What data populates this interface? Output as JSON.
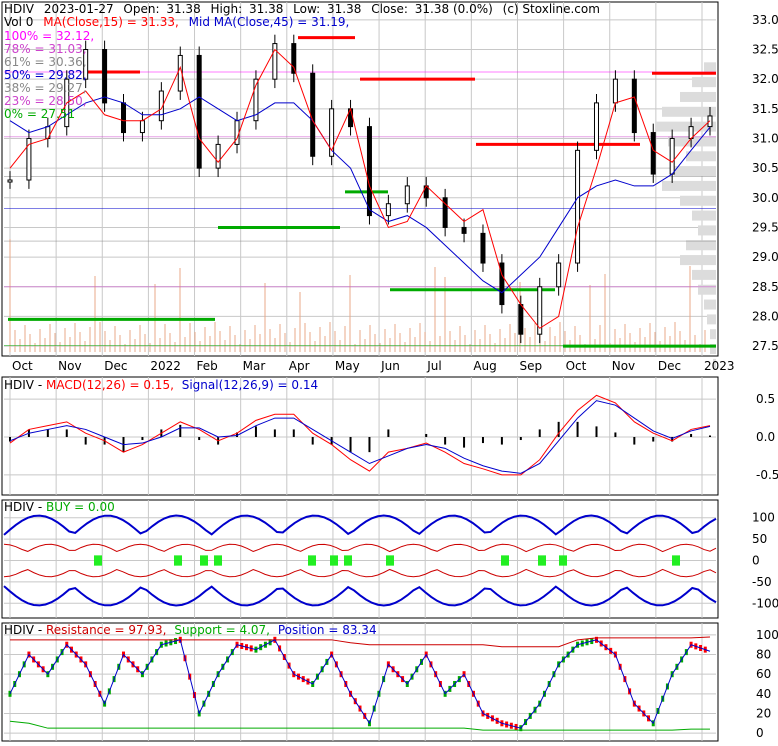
{
  "header": {
    "symbol": "HDIV",
    "date": "2023-01-27",
    "open_label": "Open:",
    "open": "31.38",
    "high_label": "High:",
    "high": "31.38",
    "low_label": "Low:",
    "low": "31.38",
    "close_label": "Close:",
    "close": "31.38 (0.0%)",
    "credit": "(c) Stoxline.com",
    "vol_label": "Vol 0",
    "ma15_label": "MA(Close,15) = 31.33,",
    "ma45_label": "Mid MA(Close,45) = 31.19,"
  },
  "fib_levels": [
    {
      "label": "100% = 32.12,",
      "color": "#ff00ff"
    },
    {
      "label": "78% = 31.03,",
      "color": "#cc44cc"
    },
    {
      "label": "61% = 30.36,",
      "color": "#888888"
    },
    {
      "label": "50% = 29.82,",
      "color": "#0000cc"
    },
    {
      "label": "38% = 29.27,",
      "color": "#888888"
    },
    {
      "label": "23% = 28.50,",
      "color": "#cc44cc"
    },
    {
      "label": "0% = 27.51",
      "color": "#00aa00"
    }
  ],
  "months": [
    "Oct",
    "Nov",
    "Dec",
    "2022",
    "Feb",
    "Mar",
    "Apr",
    "May",
    "Jun",
    "Jul",
    "Aug",
    "Sep",
    "Oct",
    "Nov",
    "Dec",
    "2023"
  ],
  "price_axis": [
    "33.0",
    "32.5",
    "32.0",
    "31.5",
    "31.0",
    "30.5",
    "30.0",
    "29.5",
    "29.0",
    "28.5",
    "28.0",
    "27.5"
  ],
  "macd_panel": {
    "title_sym": "HDIV",
    "title_sep": " - ",
    "macd_label": "MACD(12,26) = 0.15,",
    "signal_label": "Signal(12,26,9) = 0.14",
    "axis": [
      "0.5",
      "0.0",
      "-0.5"
    ]
  },
  "buy_panel": {
    "title_sym": "HDIV",
    "title_sep": " - ",
    "buy_label": "BUY = 0.00",
    "axis": [
      "100",
      "50",
      "0",
      "-50",
      "-100"
    ]
  },
  "stoch_panel": {
    "title_sym": "HDIV",
    "title_sep": " - ",
    "res_label": "Resistance = 97.93,",
    "sup_label": "Support = 4.07,",
    "pos_label": "Position = 83.34",
    "axis": [
      "100",
      "80",
      "60",
      "40",
      "20",
      "0"
    ]
  },
  "colors": {
    "up": "#00aa00",
    "down": "#ff0000",
    "ma15": "#ff0000",
    "ma45": "#0000cc",
    "volume": "#e8a98a",
    "grid": "#c8c8c8",
    "buy_bar": "#22ee22"
  },
  "chart_data": [
    {
      "type": "candlestick",
      "title": "HDIV 2023-01-27",
      "x_ticks": [
        "Oct",
        "Nov",
        "Dec",
        "2022",
        "Feb",
        "Mar",
        "Apr",
        "May",
        "Jun",
        "Jul",
        "Aug",
        "Sep",
        "Oct",
        "Nov",
        "Dec",
        "2023"
      ],
      "ylim": [
        27.4,
        33.2
      ],
      "series": [
        {
          "name": "MA(Close,15)",
          "values": [
            30.5,
            30.9,
            31.0,
            31.6,
            31.8,
            31.4,
            31.3,
            31.3,
            31.5,
            32.2,
            31.0,
            30.6,
            31.0,
            31.9,
            32.5,
            32.2,
            31.3,
            30.8,
            31.5,
            30.2,
            29.5,
            29.6,
            30.2,
            29.9,
            29.6,
            29.8,
            28.7,
            28.2,
            27.8,
            28.0,
            29.5,
            30.5,
            31.6,
            31.7,
            30.8,
            30.6,
            31.0,
            31.3
          ]
        },
        {
          "name": "Mid MA(Close,45)",
          "values": [
            31.3,
            31.1,
            31.2,
            31.4,
            31.6,
            31.7,
            31.6,
            31.4,
            31.4,
            31.5,
            31.7,
            31.5,
            31.3,
            31.4,
            31.6,
            31.6,
            31.3,
            30.8,
            30.5,
            29.8,
            29.6,
            29.7,
            29.5,
            29.2,
            28.9,
            28.6,
            28.4,
            28.7,
            29.0,
            29.5,
            30.0,
            30.2,
            30.3,
            30.2,
            30.2,
            30.4,
            30.8,
            31.19
          ]
        },
        {
          "name": "Close",
          "values": [
            30.3,
            31.0,
            31.2,
            32.0,
            32.5,
            31.6,
            31.1,
            31.3,
            31.8,
            32.4,
            30.5,
            30.9,
            31.3,
            32.0,
            32.6,
            32.1,
            30.7,
            31.5,
            31.2,
            29.7,
            29.9,
            30.2,
            30.0,
            29.5,
            29.4,
            28.9,
            28.2,
            27.7,
            28.5,
            28.9,
            30.8,
            31.6,
            32.0,
            31.1,
            30.4,
            31.0,
            31.2,
            31.38
          ]
        }
      ],
      "fibonacci": [
        {
          "level": "100%",
          "value": 32.12
        },
        {
          "level": "78%",
          "value": 31.03
        },
        {
          "level": "61%",
          "value": 30.36
        },
        {
          "level": "50%",
          "value": 29.82
        },
        {
          "level": "38%",
          "value": 29.27
        },
        {
          "level": "23%",
          "value": 28.5
        },
        {
          "level": "0%",
          "value": 27.51
        }
      ]
    },
    {
      "type": "line",
      "title": "HDIV - MACD(12,26) = 0.15, Signal(12,26,9) = 0.14",
      "ylim": [
        -0.7,
        0.7
      ],
      "series": [
        {
          "name": "MACD(12,26)",
          "values": [
            -0.08,
            0.1,
            0.15,
            0.2,
            0.05,
            -0.05,
            -0.2,
            -0.1,
            0.05,
            0.2,
            0.1,
            -0.05,
            0.05,
            0.22,
            0.3,
            0.3,
            0.05,
            -0.1,
            -0.3,
            -0.45,
            -0.2,
            -0.15,
            -0.08,
            -0.2,
            -0.35,
            -0.42,
            -0.5,
            -0.5,
            -0.3,
            0.05,
            0.35,
            0.55,
            0.45,
            0.2,
            0.05,
            -0.05,
            0.1,
            0.15
          ]
        },
        {
          "name": "Signal(12,26,9)",
          "values": [
            -0.05,
            0.05,
            0.1,
            0.15,
            0.1,
            0.0,
            -0.1,
            -0.08,
            0.0,
            0.12,
            0.12,
            0.0,
            0.02,
            0.15,
            0.25,
            0.25,
            0.1,
            -0.05,
            -0.2,
            -0.35,
            -0.25,
            -0.15,
            -0.1,
            -0.15,
            -0.28,
            -0.38,
            -0.45,
            -0.48,
            -0.35,
            -0.05,
            0.25,
            0.48,
            0.42,
            0.25,
            0.08,
            -0.02,
            0.08,
            0.14
          ]
        }
      ]
    },
    {
      "type": "line",
      "title": "HDIV - BUY = 0.00",
      "ylim": [
        -125,
        125
      ],
      "series": [
        {
          "name": "BUY",
          "values": [
            0,
            0,
            0,
            0,
            0,
            0,
            0,
            0,
            0,
            0,
            0,
            0,
            0,
            0,
            0,
            0,
            0,
            0,
            0,
            0,
            0,
            0,
            0,
            0,
            0,
            0,
            0,
            0,
            0,
            0,
            0,
            0,
            0,
            0,
            0,
            0,
            0,
            0
          ]
        }
      ]
    },
    {
      "type": "line",
      "title": "HDIV - Resistance = 97.93, Support = 4.07, Position = 83.34",
      "ylim": [
        -5,
        105
      ],
      "series": [
        {
          "name": "Resistance",
          "values": [
            95,
            95,
            95,
            95,
            95,
            95,
            95,
            95,
            95,
            95,
            95,
            95,
            95,
            95,
            95,
            95,
            95,
            95,
            92,
            90,
            90,
            90,
            90,
            90,
            90,
            90,
            88,
            88,
            88,
            88,
            95,
            97,
            97,
            97,
            97,
            97,
            97,
            97.93
          ]
        },
        {
          "name": "Support",
          "values": [
            12,
            10,
            5,
            5,
            5,
            5,
            5,
            5,
            5,
            5,
            5,
            5,
            5,
            5,
            5,
            5,
            5,
            5,
            5,
            5,
            5,
            5,
            5,
            5,
            5,
            3,
            3,
            3,
            3,
            3,
            3,
            3,
            3,
            3,
            3,
            3,
            4,
            4.07
          ]
        },
        {
          "name": "Position",
          "values": [
            40,
            80,
            60,
            90,
            70,
            30,
            80,
            60,
            90,
            95,
            20,
            60,
            90,
            85,
            95,
            60,
            50,
            80,
            40,
            10,
            70,
            50,
            80,
            40,
            60,
            20,
            10,
            5,
            30,
            70,
            90,
            95,
            80,
            30,
            10,
            60,
            90,
            83.34
          ]
        }
      ]
    }
  ]
}
